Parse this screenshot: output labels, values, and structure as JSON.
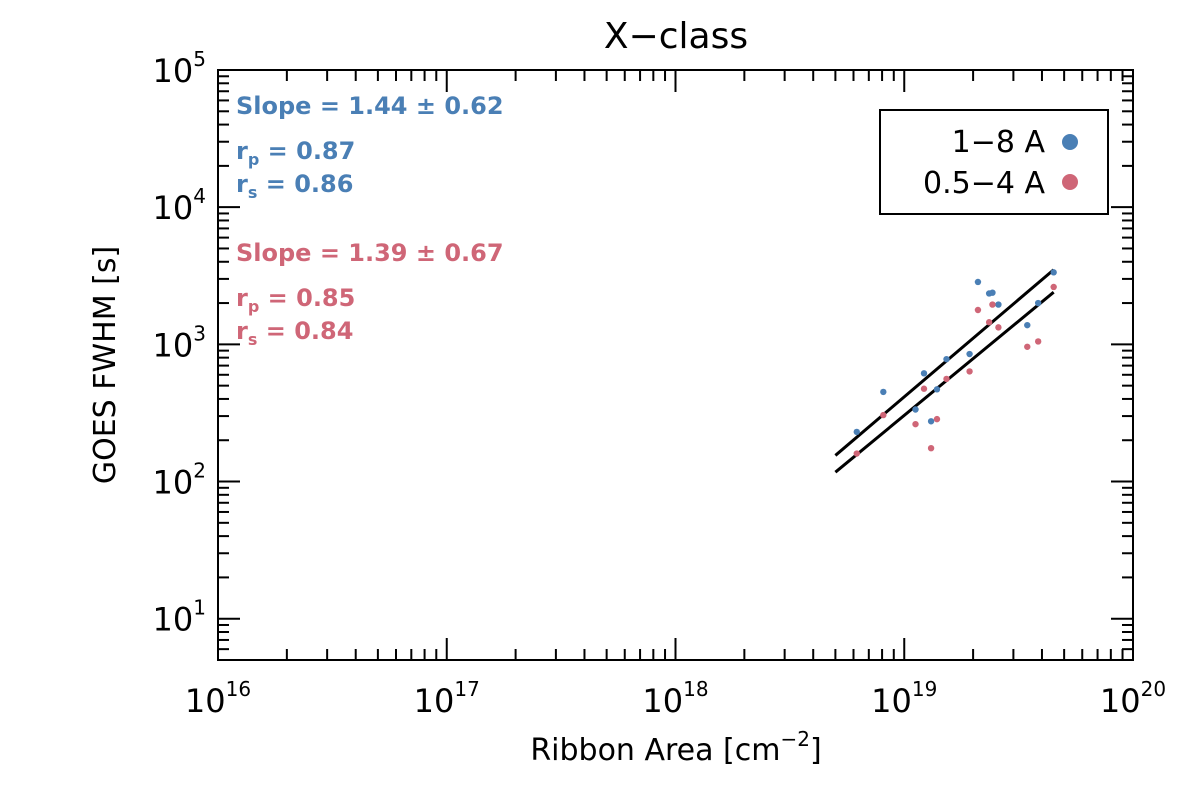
{
  "chart_data": {
    "type": "scatter",
    "title": "X−class",
    "xlabel": "Ribbon Area [cm⁻²]",
    "xlabel_parts": {
      "base": "Ribbon Area [cm",
      "sup": "−2",
      "end": "]"
    },
    "ylabel": "GOES FWHM [s]",
    "xscale": "log",
    "yscale": "log",
    "xlim": [
      1e+16,
      1e+20
    ],
    "ylim": [
      5,
      100000
    ],
    "x_ticks": [
      {
        "value": 1e+16,
        "base": "10",
        "exp": "16"
      },
      {
        "value": 1e+17,
        "base": "10",
        "exp": "17"
      },
      {
        "value": 1e+18,
        "base": "10",
        "exp": "18"
      },
      {
        "value": 1e+19,
        "base": "10",
        "exp": "19"
      },
      {
        "value": 1e+20,
        "base": "10",
        "exp": "20"
      }
    ],
    "y_ticks": [
      {
        "value": 10,
        "base": "10",
        "exp": "1"
      },
      {
        "value": 100,
        "base": "10",
        "exp": "2"
      },
      {
        "value": 1000,
        "base": "10",
        "exp": "3"
      },
      {
        "value": 10000,
        "base": "10",
        "exp": "4"
      },
      {
        "value": 100000,
        "base": "10",
        "exp": "5"
      }
    ],
    "legend": {
      "position": "top-right",
      "entries": [
        "1−8 A",
        "0.5−4 A"
      ]
    },
    "series": [
      {
        "name": "1−8 A",
        "color": "#4a7fb5",
        "points": [
          [
            6.2e+18,
            230
          ],
          [
            8.1e+18,
            450
          ],
          [
            1.12e+19,
            335
          ],
          [
            1.22e+19,
            615
          ],
          [
            1.31e+19,
            275
          ],
          [
            1.39e+19,
            470
          ],
          [
            1.53e+19,
            780
          ],
          [
            1.93e+19,
            850
          ],
          [
            2.1e+19,
            2850
          ],
          [
            2.35e+19,
            2350
          ],
          [
            2.43e+19,
            2380
          ],
          [
            2.58e+19,
            1950
          ],
          [
            3.45e+19,
            1380
          ],
          [
            3.85e+19,
            2000
          ],
          [
            4.5e+19,
            3350
          ]
        ],
        "fit": {
          "x": [
            5e+18,
            4.5e+19
          ],
          "y": [
            155,
            3500
          ]
        },
        "stats": {
          "slope": "Slope = 1.44 ± 0.62",
          "rp_label": "r",
          "rp_sub": "p",
          "rp_value": " = 0.87",
          "rs_label": "r",
          "rs_sub": "s",
          "rs_value": " = 0.86"
        }
      },
      {
        "name": "0.5−4 A",
        "color": "#cf6677",
        "points": [
          [
            6.2e+18,
            160
          ],
          [
            8.1e+18,
            305
          ],
          [
            1.12e+19,
            262
          ],
          [
            1.22e+19,
            475
          ],
          [
            1.31e+19,
            175
          ],
          [
            1.39e+19,
            285
          ],
          [
            1.53e+19,
            560
          ],
          [
            1.93e+19,
            635
          ],
          [
            2.1e+19,
            1780
          ],
          [
            2.35e+19,
            1450
          ],
          [
            2.43e+19,
            1950
          ],
          [
            2.58e+19,
            1330
          ],
          [
            3.45e+19,
            960
          ],
          [
            3.85e+19,
            1050
          ],
          [
            4.5e+19,
            2620
          ]
        ],
        "fit": {
          "x": [
            5e+18,
            4.5e+19
          ],
          "y": [
            117,
            2400
          ]
        },
        "stats": {
          "slope": "Slope = 1.39 ± 0.67",
          "rp_label": "r",
          "rp_sub": "p",
          "rp_value": " = 0.85",
          "rs_label": "r",
          "rs_sub": "s",
          "rs_value": " = 0.84"
        }
      }
    ]
  }
}
